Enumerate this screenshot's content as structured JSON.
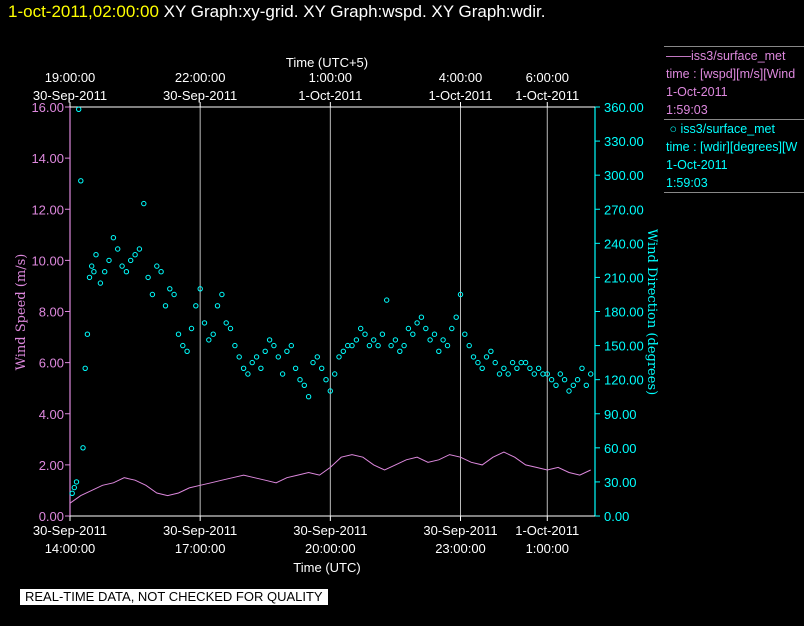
{
  "header": {
    "date": "1-oct-2011,02:00:00",
    "graph_titles": [
      "XY Graph:xy-grid.",
      "XY Graph:wspd.",
      "XY Graph:wdir."
    ]
  },
  "legend": [
    {
      "line1": "iss3/surface_met",
      "line2": "time : [wspd][m/s][Wind",
      "line3": "1-Oct-2011",
      "line4": "1:59:03",
      "color": "#dd88dd",
      "marker": "line"
    },
    {
      "line1": "iss3/surface_met",
      "line2": "time : [wdir][degrees][W",
      "line3": "1-Oct-2011",
      "line4": "1:59:03",
      "color": "#00ffff",
      "marker": "circle"
    }
  ],
  "notice": "REAL-TIME DATA, NOT CHECKED FOR QUALITY",
  "chart_data": {
    "type": "scatter",
    "top_axis": {
      "title": "Time (UTC+5)",
      "ticks": [
        {
          "label1": "19:00:00",
          "label2": "30-Sep-2011",
          "hour": 14
        },
        {
          "label1": "22:00:00",
          "label2": "30-Sep-2011",
          "hour": 17
        },
        {
          "label1": "1:00:00",
          "label2": "1-Oct-2011",
          "hour": 20
        },
        {
          "label1": "4:00:00",
          "label2": "1-Oct-2011",
          "hour": 23
        },
        {
          "label1": "6:00:00",
          "label2": "1-Oct-2011",
          "hour": 25
        }
      ]
    },
    "bottom_axis": {
      "title": "Time (UTC)",
      "range_hours": [
        14,
        26.1
      ],
      "ticks": [
        {
          "label1": "30-Sep-2011",
          "label2": "14:00:00",
          "hour": 14
        },
        {
          "label1": "30-Sep-2011",
          "label2": "17:00:00",
          "hour": 17
        },
        {
          "label1": "30-Sep-2011",
          "label2": "20:00:00",
          "hour": 20
        },
        {
          "label1": "30-Sep-2011",
          "label2": "23:00:00",
          "hour": 23
        },
        {
          "label1": "1-Oct-2011",
          "label2": "1:00:00",
          "hour": 25
        }
      ]
    },
    "left_axis": {
      "label": "Wind Speed (m/s)",
      "ylim": [
        0,
        16
      ],
      "ticks": [
        "0.00",
        "2.00",
        "4.00",
        "6.00",
        "8.00",
        "10.00",
        "12.00",
        "14.00",
        "16.00"
      ],
      "color": "#dd88dd"
    },
    "right_axis": {
      "label": "Wind Direction (degrees)",
      "ylim": [
        0,
        360
      ],
      "ticks": [
        "0.00",
        "30.00",
        "60.00",
        "90.00",
        "120.00",
        "150.00",
        "180.00",
        "210.00",
        "240.00",
        "270.00",
        "300.00",
        "330.00",
        "360.00"
      ],
      "color": "#00ffff"
    },
    "grid": "vertical",
    "series": [
      {
        "name": "iss3/surface_met",
        "axis": "left",
        "style": "line",
        "color": "#dd88dd",
        "x": [
          14.0,
          14.25,
          14.5,
          14.75,
          15.0,
          15.25,
          15.5,
          15.75,
          16.0,
          16.25,
          16.5,
          16.75,
          17.0,
          17.25,
          17.5,
          17.75,
          18.0,
          18.25,
          18.5,
          18.75,
          19.0,
          19.25,
          19.5,
          19.75,
          20.0,
          20.25,
          20.5,
          20.75,
          21.0,
          21.25,
          21.5,
          21.75,
          22.0,
          22.25,
          22.5,
          22.75,
          23.0,
          23.25,
          23.5,
          23.75,
          24.0,
          24.25,
          24.5,
          24.75,
          25.0,
          25.25,
          25.5,
          25.75,
          26.0
        ],
        "values": [
          0.5,
          0.8,
          1.0,
          1.2,
          1.3,
          1.5,
          1.4,
          1.2,
          0.9,
          0.8,
          0.9,
          1.1,
          1.2,
          1.3,
          1.4,
          1.5,
          1.6,
          1.5,
          1.4,
          1.3,
          1.5,
          1.6,
          1.7,
          1.6,
          1.9,
          2.3,
          2.4,
          2.3,
          2.0,
          1.8,
          2.0,
          2.2,
          2.3,
          2.1,
          2.2,
          2.4,
          2.3,
          2.1,
          2.0,
          2.3,
          2.5,
          2.3,
          2.0,
          1.9,
          1.8,
          1.9,
          1.7,
          1.6,
          1.8
        ]
      },
      {
        "name": "iss3/surface_met",
        "axis": "right",
        "style": "circle",
        "color": "#00ffff",
        "x": [
          14.05,
          14.1,
          14.15,
          14.2,
          14.25,
          14.3,
          14.35,
          14.4,
          14.45,
          14.5,
          14.55,
          14.6,
          14.7,
          14.8,
          14.9,
          15.0,
          15.1,
          15.2,
          15.3,
          15.4,
          15.5,
          15.6,
          15.7,
          15.8,
          15.9,
          16.0,
          16.1,
          16.2,
          16.3,
          16.4,
          16.5,
          16.6,
          16.7,
          16.8,
          16.9,
          17.0,
          17.1,
          17.2,
          17.3,
          17.4,
          17.5,
          17.6,
          17.7,
          17.8,
          17.9,
          18.0,
          18.1,
          18.2,
          18.3,
          18.4,
          18.5,
          18.6,
          18.7,
          18.8,
          18.9,
          19.0,
          19.1,
          19.2,
          19.3,
          19.4,
          19.5,
          19.6,
          19.7,
          19.8,
          19.9,
          20.0,
          20.1,
          20.2,
          20.3,
          20.4,
          20.5,
          20.6,
          20.7,
          20.8,
          20.9,
          21.0,
          21.1,
          21.2,
          21.3,
          21.4,
          21.5,
          21.6,
          21.7,
          21.8,
          21.9,
          22.0,
          22.1,
          22.2,
          22.3,
          22.4,
          22.5,
          22.6,
          22.7,
          22.8,
          22.9,
          23.0,
          23.1,
          23.2,
          23.3,
          23.4,
          23.5,
          23.6,
          23.7,
          23.8,
          23.9,
          24.0,
          24.1,
          24.2,
          24.3,
          24.4,
          24.5,
          24.6,
          24.7,
          24.8,
          24.9,
          25.0,
          25.1,
          25.2,
          25.3,
          25.4,
          25.5,
          25.6,
          25.7,
          25.8,
          25.9,
          26.0
        ],
        "values": [
          20,
          25,
          30,
          358,
          295,
          60,
          130,
          160,
          210,
          220,
          215,
          230,
          205,
          215,
          225,
          245,
          235,
          220,
          215,
          225,
          230,
          235,
          275,
          210,
          195,
          220,
          215,
          185,
          200,
          195,
          160,
          150,
          145,
          165,
          185,
          200,
          170,
          155,
          160,
          185,
          195,
          170,
          165,
          150,
          140,
          130,
          125,
          135,
          140,
          130,
          145,
          155,
          150,
          140,
          125,
          145,
          150,
          130,
          120,
          115,
          105,
          135,
          140,
          130,
          120,
          110,
          125,
          140,
          145,
          150,
          150,
          155,
          165,
          160,
          150,
          155,
          150,
          160,
          190,
          150,
          155,
          145,
          150,
          165,
          160,
          170,
          175,
          165,
          155,
          160,
          145,
          155,
          150,
          165,
          175,
          195,
          160,
          150,
          140,
          135,
          130,
          140,
          145,
          135,
          125,
          130,
          125,
          135,
          130,
          135,
          135,
          130,
          125,
          130,
          125,
          125,
          120,
          115,
          125,
          120,
          110,
          115,
          120,
          130,
          115,
          125
        ]
      }
    ]
  }
}
